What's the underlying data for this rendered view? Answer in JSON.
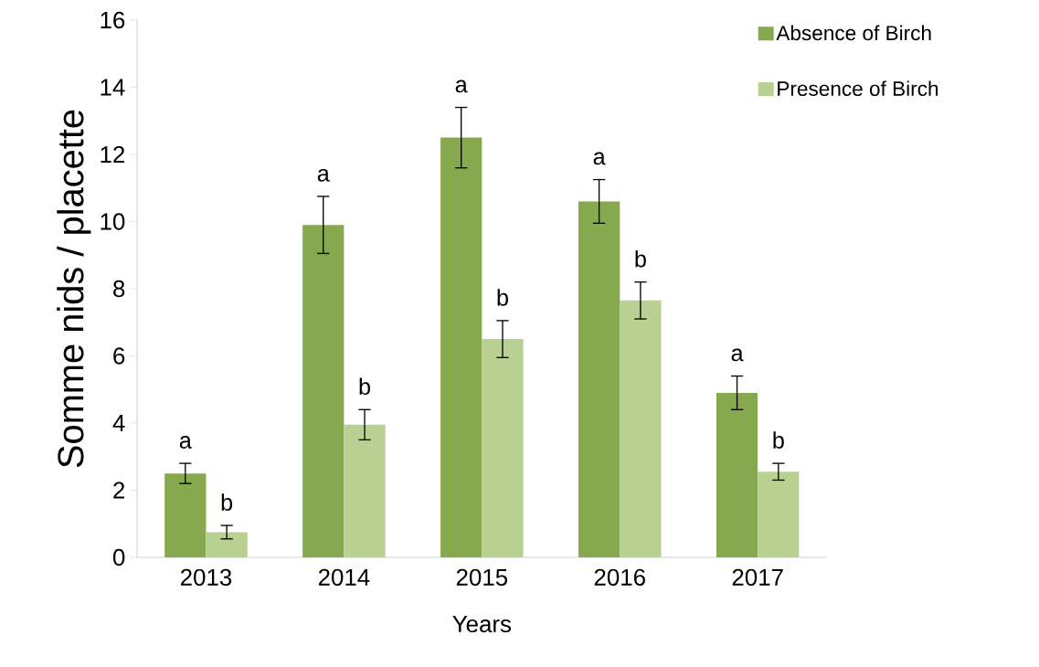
{
  "chart_data": {
    "type": "bar",
    "xlabel": "Years",
    "ylabel": "Somme nids / placette",
    "categories": [
      "2013",
      "2014",
      "2015",
      "2016",
      "2017"
    ],
    "series": [
      {
        "name": "Absence of Birch",
        "color": "#86a84e",
        "values": [
          2.5,
          9.9,
          12.5,
          10.6,
          4.9
        ],
        "errors": [
          0.3,
          0.85,
          0.9,
          0.65,
          0.5
        ]
      },
      {
        "name": "Presence of Birch",
        "color": "#b8d192",
        "values": [
          0.75,
          3.95,
          6.5,
          7.65,
          2.55
        ],
        "errors": [
          0.2,
          0.45,
          0.55,
          0.55,
          0.25
        ]
      }
    ],
    "ylim": [
      0,
      16
    ],
    "yticks": [
      0,
      2,
      4,
      6,
      8,
      10,
      12,
      14,
      16
    ],
    "grid": false,
    "legend": "top right",
    "annotations": [
      "a",
      "b",
      "a",
      "b",
      "a",
      "b",
      "a",
      "b",
      "a",
      "b"
    ]
  }
}
